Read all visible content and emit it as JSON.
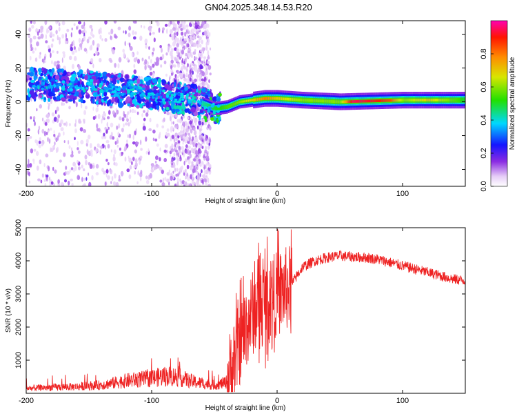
{
  "title": "GN04.2025.348.14.53.R20",
  "chart_data": [
    {
      "type": "heatmap",
      "title": "GN04.2025.348.14.53.R20",
      "xlabel": "Height of straight line (km)",
      "ylabel": "Frequency (Hz)",
      "xlim": [
        -200,
        150
      ],
      "ylim": [
        -50,
        48
      ],
      "x_ticks": [
        -200,
        -100,
        0,
        100
      ],
      "x_tick_labels": [
        "-200",
        "-100",
        "0",
        "100"
      ],
      "y_ticks": [
        -40,
        -20,
        0,
        20,
        40
      ],
      "y_tick_labels": [
        "-40",
        "-20",
        "0",
        "20",
        "40"
      ],
      "colorbar": {
        "label": "Normalized spectral amplitude",
        "range": [
          0,
          1
        ],
        "ticks": [
          0.0,
          0.2,
          0.4,
          0.6,
          0.8
        ],
        "tick_labels": [
          "0.0",
          "0.2",
          "0.4",
          "0.6",
          "0.8"
        ],
        "colormap": "rainbow"
      },
      "ridge_center_hz": {
        "x": [
          -200,
          -180,
          -150,
          -130,
          -110,
          -90,
          -75,
          -60,
          -50,
          -40,
          -30,
          -20,
          -10,
          0,
          20,
          50,
          100,
          150
        ],
        "y": [
          11,
          10,
          9,
          7,
          6,
          4,
          2,
          -1,
          -4,
          -3,
          0,
          1,
          2,
          2,
          1,
          0,
          1,
          1
        ]
      },
      "ridge_peak_amplitude": {
        "x": [
          -200,
          -150,
          -100,
          -70,
          -50,
          -30,
          -10,
          0,
          20,
          50,
          60,
          80,
          90,
          100,
          120,
          150
        ],
        "y": [
          0.3,
          0.3,
          0.35,
          0.35,
          0.5,
          0.6,
          0.8,
          0.7,
          0.6,
          0.6,
          0.95,
          0.9,
          0.85,
          0.6,
          0.7,
          0.5
        ]
      }
    },
    {
      "type": "line",
      "xlabel": "Height of straight line (km)",
      "ylabel": "SNR (10 * v/v)",
      "xlim": [
        -200,
        150
      ],
      "ylim": [
        0,
        5000
      ],
      "x_ticks": [
        -200,
        -100,
        0,
        100
      ],
      "x_tick_labels": [
        "-200",
        "-100",
        "0",
        "100"
      ],
      "y_ticks": [
        1000,
        2000,
        3000,
        4000,
        5000
      ],
      "y_tick_labels": [
        "1000",
        "2000",
        "3000",
        "4000",
        "5000"
      ],
      "line_color": "#ee2222",
      "series": [
        {
          "name": "SNR",
          "x": [
            -200,
            -180,
            -160,
            -140,
            -120,
            -100,
            -90,
            -80,
            -70,
            -60,
            -50,
            -45,
            -40,
            -35,
            -30,
            -25,
            -20,
            -15,
            -10,
            -5,
            0,
            5,
            10,
            15,
            20,
            30,
            40,
            50,
            60,
            70,
            80,
            90,
            100,
            110,
            120,
            130,
            140,
            150
          ],
          "values": [
            150,
            180,
            200,
            250,
            380,
            450,
            520,
            500,
            380,
            300,
            250,
            280,
            350,
            900,
            1500,
            2000,
            2400,
            2600,
            2800,
            2900,
            3000,
            3100,
            3200,
            3500,
            3800,
            4000,
            4100,
            4150,
            4120,
            4100,
            4050,
            3950,
            3850,
            3750,
            3650,
            3550,
            3450,
            3400
          ]
        }
      ]
    }
  ]
}
